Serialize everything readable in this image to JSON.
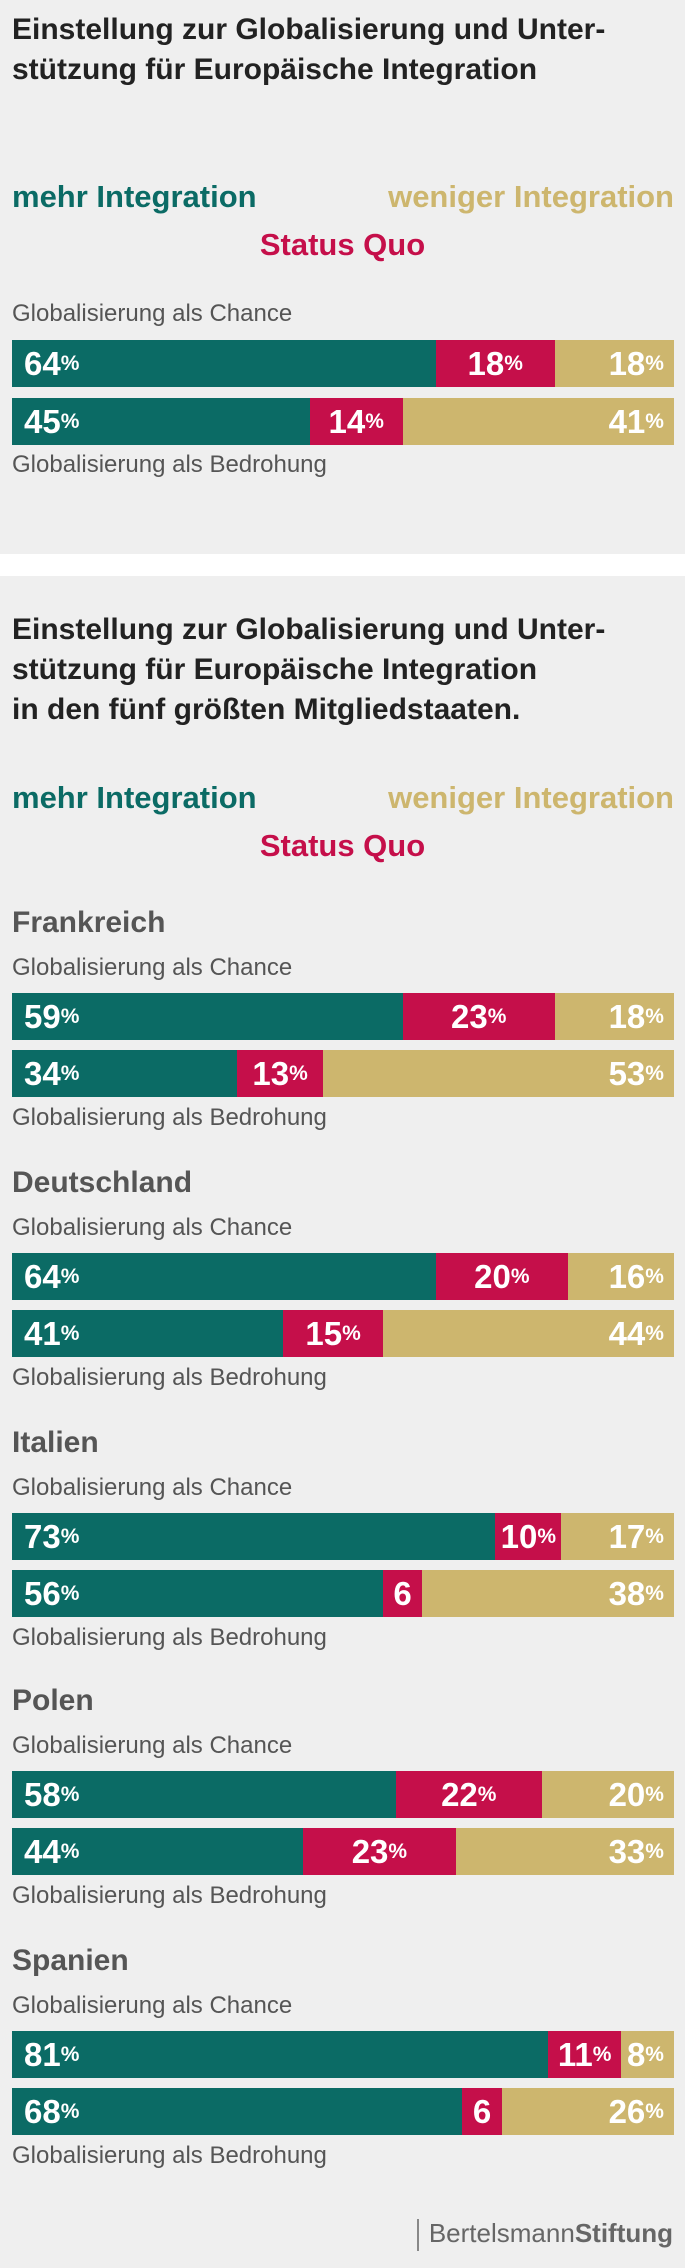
{
  "colors": {
    "more": "#0b6b65",
    "status_quo": "#c50f4a",
    "less": "#cdb66e",
    "title": "#222222",
    "label": "#555555"
  },
  "legend": {
    "more": "mehr Integration",
    "less": "weniger Integration",
    "status_quo": "Status Quo"
  },
  "labels": {
    "chance": "Globalisierung als Chance",
    "threat": "Globalisierung als Bedrohung"
  },
  "chart1": {
    "title_line1": "Einstellung zur Globalisierung und Unter-",
    "title_line2": "stützung für Europäische Integration"
  },
  "chart2": {
    "title_line1": "Einstellung zur Globalisierung und Unter-",
    "title_line2": "stützung für Europäische Integration",
    "title_line3": "in den fünf größten Mitgliedstaaten."
  },
  "footer": {
    "brand_regular": "Bertelsmann",
    "brand_bold": "Stiftung"
  },
  "chart_data": [
    {
      "type": "bar",
      "stacked": true,
      "orientation": "horizontal",
      "title": "Einstellung zur Globalisierung und Unterstützung für Europäische Integration",
      "categories": [
        "Globalisierung als Chance",
        "Globalisierung als Bedrohung"
      ],
      "series": [
        {
          "name": "mehr Integration",
          "values": [
            64,
            45
          ]
        },
        {
          "name": "Status Quo",
          "values": [
            18,
            14
          ]
        },
        {
          "name": "weniger Integration",
          "values": [
            18,
            41
          ]
        }
      ]
    },
    {
      "type": "bar",
      "stacked": true,
      "orientation": "horizontal",
      "title": "Einstellung zur Globalisierung und Unterstützung für Europäische Integration in den fünf größten Mitgliedstaaten.",
      "groups": [
        {
          "name": "Frankreich",
          "chance": [
            59,
            23,
            18
          ],
          "threat": [
            34,
            13,
            53
          ]
        },
        {
          "name": "Deutschland",
          "chance": [
            64,
            20,
            16
          ],
          "threat": [
            41,
            15,
            44
          ]
        },
        {
          "name": "Italien",
          "chance": [
            73,
            10,
            17
          ],
          "threat": [
            56,
            6,
            38
          ]
        },
        {
          "name": "Polen",
          "chance": [
            58,
            22,
            20
          ],
          "threat": [
            44,
            23,
            33
          ]
        },
        {
          "name": "Spanien",
          "chance": [
            81,
            11,
            8
          ],
          "threat": [
            68,
            6,
            26
          ]
        }
      ],
      "series_order": [
        "mehr Integration",
        "Status Quo",
        "weniger Integration"
      ],
      "unit": "%"
    }
  ]
}
